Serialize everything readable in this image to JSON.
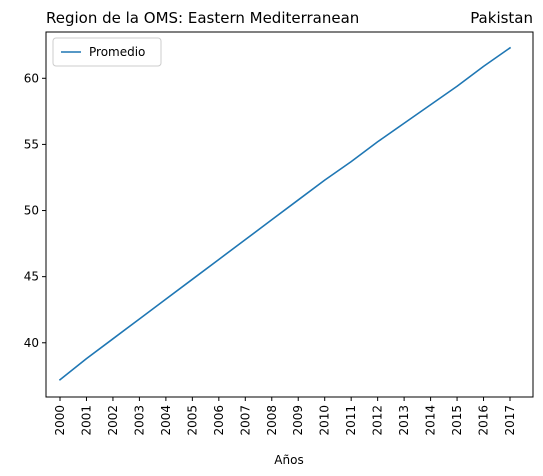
{
  "chart_data": {
    "type": "line",
    "title_left": "Region de la OMS: Eastern Mediterranean",
    "title_right": "Pakistan",
    "xlabel": "Años",
    "ylabel": "",
    "x": [
      "2000",
      "2001",
      "2002",
      "2003",
      "2004",
      "2005",
      "2006",
      "2007",
      "2008",
      "2009",
      "2010",
      "2011",
      "2012",
      "2013",
      "2014",
      "2015",
      "2016",
      "2017"
    ],
    "series": [
      {
        "name": "Promedio",
        "color": "#1f77b4",
        "values": [
          37.2,
          38.8,
          40.3,
          41.8,
          43.3,
          44.8,
          46.3,
          47.8,
          49.3,
          50.8,
          52.3,
          53.7,
          55.2,
          56.6,
          58.0,
          59.4,
          60.9,
          62.3
        ]
      }
    ],
    "yticks": [
      40,
      45,
      50,
      55,
      60
    ],
    "ylim": [
      35.9,
      63.5
    ],
    "grid": false,
    "legend": "top-left"
  }
}
